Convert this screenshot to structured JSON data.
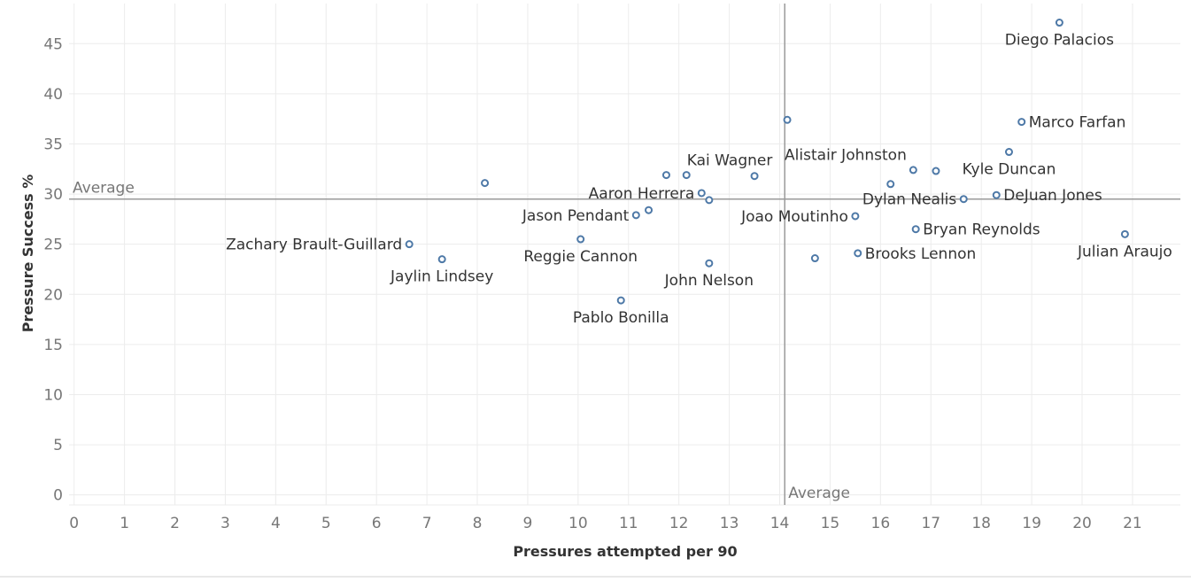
{
  "chart_data": {
    "type": "scatter",
    "xlabel": "Pressures attempted per 90",
    "ylabel": "Pressure Success %",
    "xlim": [
      -0.1,
      21.95
    ],
    "ylim": [
      -1,
      49
    ],
    "x_ticks": [
      "0",
      "1",
      "2",
      "3",
      "4",
      "5",
      "6",
      "7",
      "8",
      "9",
      "10",
      "11",
      "12",
      "13",
      "14",
      "15",
      "16",
      "17",
      "18",
      "19",
      "20",
      "21"
    ],
    "y_ticks": [
      "0",
      "5",
      "10",
      "15",
      "20",
      "25",
      "30",
      "35",
      "40",
      "45"
    ],
    "grid": true,
    "reference_lines": {
      "x_average": 14.1,
      "y_average": 29.5,
      "x_average_label": "Average",
      "y_average_label": "Average"
    },
    "point_color": "#4e79a7",
    "points": [
      {
        "label": "Diego Palacios",
        "x": 19.55,
        "y": 47.1,
        "label_pos": "below"
      },
      {
        "label": "Marco Farfan",
        "x": 18.8,
        "y": 37.2,
        "label_pos": "right"
      },
      {
        "label": "",
        "x": 14.15,
        "y": 37.4
      },
      {
        "label": "Alistair Johnston",
        "x": 14.15,
        "y": 37.4,
        "label_pos": "none"
      },
      {
        "label": "",
        "x": 18.55,
        "y": 34.2
      },
      {
        "label": "",
        "x": 16.65,
        "y": 32.4
      },
      {
        "label": "",
        "x": 17.1,
        "y": 32.3
      },
      {
        "label": "",
        "x": 16.2,
        "y": 31.0
      },
      {
        "label": "",
        "x": 17.65,
        "y": 29.5
      },
      {
        "label": "",
        "x": 18.3,
        "y": 29.9
      },
      {
        "label": "",
        "x": 15.5,
        "y": 27.8
      },
      {
        "label": "",
        "x": 16.7,
        "y": 26.5
      },
      {
        "label": "",
        "x": 20.85,
        "y": 26.0
      },
      {
        "label": "",
        "x": 15.55,
        "y": 24.1
      },
      {
        "label": "",
        "x": 14.7,
        "y": 23.6
      },
      {
        "label": "",
        "x": 13.5,
        "y": 31.8
      },
      {
        "label": "",
        "x": 11.75,
        "y": 31.9
      },
      {
        "label": "",
        "x": 12.15,
        "y": 31.9
      },
      {
        "label": "",
        "x": 12.45,
        "y": 30.1
      },
      {
        "label": "",
        "x": 12.6,
        "y": 29.4
      },
      {
        "label": "",
        "x": 8.15,
        "y": 31.1
      },
      {
        "label": "",
        "x": 11.4,
        "y": 28.4
      },
      {
        "label": "",
        "x": 11.15,
        "y": 27.9
      },
      {
        "label": "",
        "x": 10.05,
        "y": 25.5
      },
      {
        "label": "",
        "x": 6.65,
        "y": 25.0
      },
      {
        "label": "",
        "x": 7.3,
        "y": 23.5
      },
      {
        "label": "",
        "x": 12.6,
        "y": 23.1
      },
      {
        "label": "",
        "x": 10.85,
        "y": 19.4
      }
    ],
    "labels": [
      {
        "text": "Diego Palacios",
        "x": 19.55,
        "y": 47.1,
        "pos": "below"
      },
      {
        "text": "Marco Farfan",
        "x": 18.8,
        "y": 37.2,
        "pos": "right"
      },
      {
        "text": "Alistair Johnston",
        "x": 14.15,
        "y": 37.4,
        "pos": "below-right"
      },
      {
        "text": "Kyle Duncan",
        "x": 18.55,
        "y": 34.2,
        "pos": "below"
      },
      {
        "text": "Kai Wagner",
        "x": 13.5,
        "y": 31.8,
        "pos": "above-left"
      },
      {
        "text": "Aaron Herrera",
        "x": 12.45,
        "y": 30.1,
        "pos": "left"
      },
      {
        "text": "Dylan Nealis",
        "x": 17.65,
        "y": 29.5,
        "pos": "left"
      },
      {
        "text": "DeJuan Jones",
        "x": 18.3,
        "y": 29.9,
        "pos": "right"
      },
      {
        "text": "Jason Pendant",
        "x": 11.15,
        "y": 27.9,
        "pos": "left"
      },
      {
        "text": "Joao Moutinho",
        "x": 15.5,
        "y": 27.8,
        "pos": "left"
      },
      {
        "text": "Bryan Reynolds",
        "x": 16.7,
        "y": 26.5,
        "pos": "right"
      },
      {
        "text": "Julian Araujo",
        "x": 20.85,
        "y": 26.0,
        "pos": "below"
      },
      {
        "text": "Zachary Brault-Guillard",
        "x": 6.65,
        "y": 25.0,
        "pos": "left"
      },
      {
        "text": "Reggie Cannon",
        "x": 10.05,
        "y": 25.5,
        "pos": "below"
      },
      {
        "text": "Brooks Lennon",
        "x": 15.55,
        "y": 24.1,
        "pos": "right"
      },
      {
        "text": "Jaylin Lindsey",
        "x": 7.3,
        "y": 23.5,
        "pos": "below"
      },
      {
        "text": "John Nelson",
        "x": 12.6,
        "y": 23.1,
        "pos": "below"
      },
      {
        "text": "Pablo Bonilla",
        "x": 10.85,
        "y": 19.4,
        "pos": "below"
      }
    ]
  }
}
